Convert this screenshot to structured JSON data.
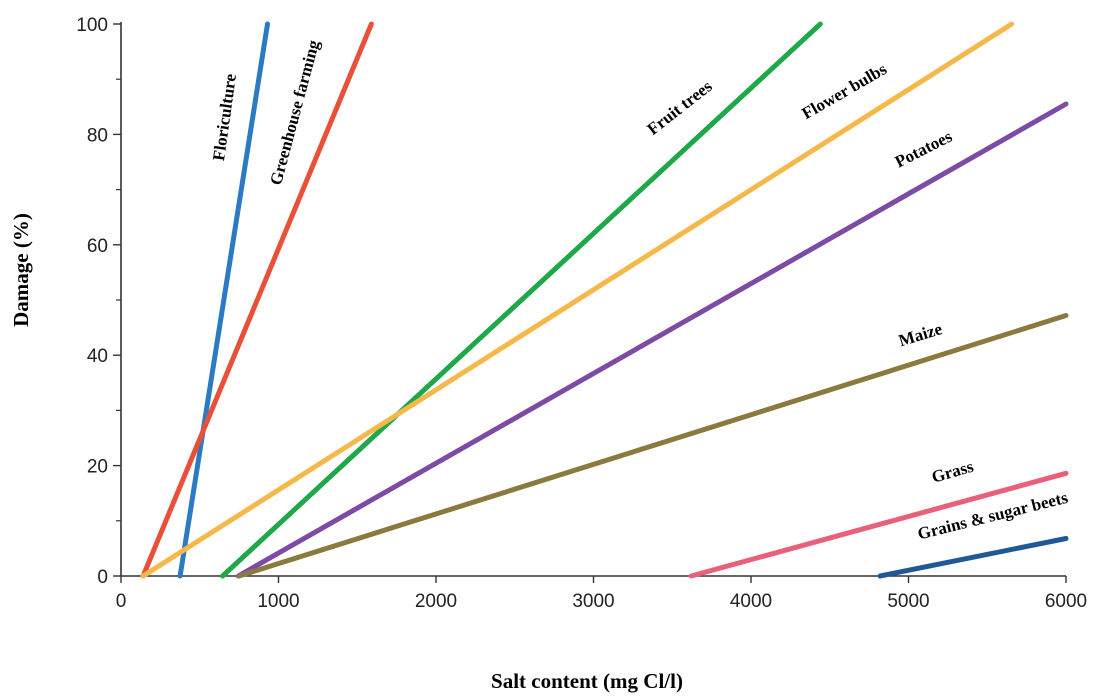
{
  "chart_data": {
    "type": "line",
    "title": "",
    "xlabel": "Salt content (mg Cl/l)",
    "ylabel": "Damage (%)",
    "xlim": [
      0,
      6000
    ],
    "ylim": [
      0,
      100
    ],
    "xticks": [
      0,
      1000,
      2000,
      3000,
      4000,
      5000,
      6000
    ],
    "yticks": [
      0,
      20,
      40,
      60,
      80,
      100
    ],
    "grid": false,
    "legend": "none (series labelled directly on lines)",
    "series": [
      {
        "name": "Floriculture",
        "color": "#2a7bc1",
        "points": [
          [
            375,
            0
          ],
          [
            930,
            100
          ]
        ]
      },
      {
        "name": "Greenhouse farming",
        "color": "#e8503a",
        "points": [
          [
            140,
            0
          ],
          [
            1590,
            100
          ]
        ]
      },
      {
        "name": "Fruit trees",
        "color": "#1fa84a",
        "points": [
          [
            645,
            0
          ],
          [
            4440,
            100
          ]
        ]
      },
      {
        "name": "Flower bulbs",
        "color": "#f5b84b",
        "points": [
          [
            140,
            0
          ],
          [
            5655,
            100
          ]
        ]
      },
      {
        "name": "Potatoes",
        "color": "#7d4aa5",
        "points": [
          [
            745,
            0
          ],
          [
            6000,
            85.5
          ]
        ]
      },
      {
        "name": "Maize",
        "color": "#8b7a40",
        "points": [
          [
            750,
            0
          ],
          [
            6000,
            47.2
          ]
        ]
      },
      {
        "name": "Grass",
        "color": "#e8607a",
        "points": [
          [
            3620,
            0
          ],
          [
            6000,
            18.6
          ]
        ]
      },
      {
        "name": "Grains & sugar beets",
        "color": "#1f5a96",
        "points": [
          [
            4820,
            0
          ],
          [
            6000,
            6.8
          ]
        ]
      }
    ]
  }
}
